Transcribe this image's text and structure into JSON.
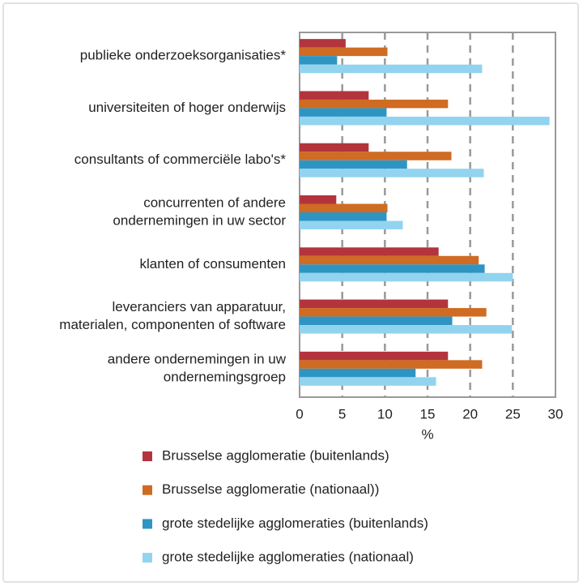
{
  "chart_data": {
    "type": "hbar",
    "categories": [
      [
        "publieke onderzoeksorganisaties*"
      ],
      [
        "universiteiten of hoger onderwijs"
      ],
      [
        "consultants of commerciële labo's*"
      ],
      [
        "concurrenten of andere",
        "ondernemingen in uw sector"
      ],
      [
        "klanten of consumenten"
      ],
      [
        "leveranciers van apparatuur,",
        "materialen, componenten of software"
      ],
      [
        "andere ondernemingen in uw",
        "ondernemingsgroep"
      ]
    ],
    "series": [
      {
        "name": "Brusselse agglomeratie (buitenlands)",
        "color": "#b3343d",
        "values": [
          5.4,
          8.1,
          8.1,
          4.3,
          16.3,
          17.4,
          17.4
        ]
      },
      {
        "name": "Brusselse agglomeratie (nationaal))",
        "color": "#cf6b22",
        "values": [
          10.3,
          17.4,
          17.8,
          10.3,
          21.0,
          21.9,
          21.4
        ]
      },
      {
        "name": "grote stedelijke agglomeraties (buitenlands)",
        "color": "#2e95c3",
        "values": [
          4.4,
          10.2,
          12.6,
          10.2,
          21.7,
          17.9,
          13.6
        ]
      },
      {
        "name": "grote stedelijke agglomeraties (nationaal)",
        "color": "#92d4ef",
        "values": [
          21.4,
          29.3,
          21.6,
          12.1,
          25.0,
          24.9,
          16.0
        ]
      }
    ],
    "xlabel": "%",
    "xlim": [
      0,
      30
    ],
    "xticks": [
      0,
      5,
      10,
      15,
      20,
      25,
      30
    ],
    "grid": true
  }
}
